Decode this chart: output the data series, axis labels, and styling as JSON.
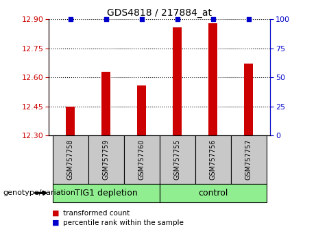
{
  "title": "GDS4818 / 217884_at",
  "samples": [
    "GSM757758",
    "GSM757759",
    "GSM757760",
    "GSM757755",
    "GSM757756",
    "GSM757757"
  ],
  "bar_values": [
    12.45,
    12.63,
    12.56,
    12.86,
    12.88,
    12.67
  ],
  "percentile_values": [
    100,
    100,
    100,
    100,
    100,
    100
  ],
  "bar_color": "#CC0000",
  "dot_color": "#0000CC",
  "ylim_left": [
    12.3,
    12.9
  ],
  "ylim_right": [
    0,
    100
  ],
  "yticks_left": [
    12.3,
    12.45,
    12.6,
    12.75,
    12.9
  ],
  "yticks_right": [
    0,
    25,
    50,
    75,
    100
  ],
  "groups": [
    {
      "label": "TIG1 depletion",
      "indices": [
        0,
        1,
        2
      ]
    },
    {
      "label": "control",
      "indices": [
        3,
        4,
        5
      ]
    }
  ],
  "group_colors": [
    "#90EE90",
    "#90EE90"
  ],
  "sample_box_color": "#C8C8C8",
  "genotype_label": "genotype/variation",
  "legend_items": [
    {
      "label": "transformed count",
      "color": "#CC0000"
    },
    {
      "label": "percentile rank within the sample",
      "color": "#0000CC"
    }
  ],
  "bar_width": 0.25,
  "background_color": "#ffffff",
  "grid_color": "#000000",
  "ax_left_tick_color": "#CC0000",
  "ax_right_tick_color": "#0000CC"
}
